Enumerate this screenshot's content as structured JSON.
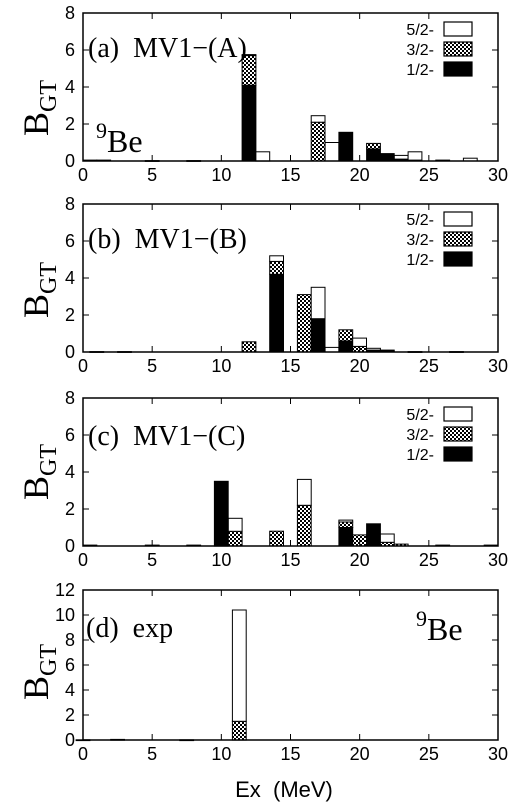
{
  "chart_data": [
    {
      "type": "bar",
      "stacked": true,
      "title": "(a)  MV1−(A)",
      "nucleus_label": {
        "mass": "9",
        "symbol": "Be"
      },
      "ylabel": {
        "main": "B",
        "sub": "GT"
      },
      "xlabel": "",
      "xlim": [
        0,
        30
      ],
      "ylim": [
        0,
        8
      ],
      "xticks": [
        0,
        5,
        10,
        15,
        20,
        25,
        30
      ],
      "yticks": [
        0,
        2,
        4,
        6,
        8
      ],
      "legend": {
        "position": "top-right",
        "entries": [
          "5/2-",
          "3/2-",
          "1/2-"
        ]
      },
      "bar_width": 1,
      "x": [
        0.5,
        1.5,
        5.0,
        8.0,
        12.0,
        13.0,
        17.0,
        18.0,
        19.0,
        21.0,
        22.0,
        23.0,
        24.0,
        26.0,
        28.0
      ],
      "series": [
        {
          "name": "1/2-",
          "style": "solid",
          "values": [
            0.05,
            0.0,
            0.0,
            0.0,
            4.1,
            0.0,
            0.0,
            0.0,
            1.55,
            0.65,
            0.4,
            0.1,
            0.05,
            0.0,
            0.0
          ]
        },
        {
          "name": "3/2-",
          "style": "hatched",
          "values": [
            0.0,
            0.05,
            0.02,
            0.02,
            1.6,
            0.0,
            2.1,
            0.0,
            0.0,
            0.3,
            0.0,
            0.0,
            0.0,
            0.05,
            0.0
          ]
        },
        {
          "name": "5/2-",
          "style": "open",
          "values": [
            0.0,
            0.0,
            0.0,
            0.0,
            0.05,
            0.5,
            0.35,
            1.0,
            0.0,
            0.0,
            0.0,
            0.2,
            0.45,
            0.0,
            0.15
          ]
        }
      ]
    },
    {
      "type": "bar",
      "stacked": true,
      "title": "(b)  MV1−(B)",
      "ylabel": {
        "main": "B",
        "sub": "GT"
      },
      "xlabel": "",
      "xlim": [
        0,
        30
      ],
      "ylim": [
        0,
        8
      ],
      "xticks": [
        0,
        5,
        10,
        15,
        20,
        25,
        30
      ],
      "yticks": [
        0,
        2,
        4,
        6,
        8
      ],
      "legend": {
        "position": "top-right",
        "entries": [
          "5/2-",
          "3/2-",
          "1/2-"
        ]
      },
      "bar_width": 1,
      "x": [
        1.0,
        3.0,
        12.0,
        14.0,
        16.0,
        17.0,
        18.0,
        19.0,
        20.0,
        21.0,
        22.0,
        24.0,
        27.0
      ],
      "series": [
        {
          "name": "1/2-",
          "style": "solid",
          "values": [
            0.0,
            0.0,
            0.0,
            4.2,
            0.0,
            1.8,
            0.0,
            0.6,
            0.0,
            0.1,
            0.05,
            0.0,
            0.0
          ]
        },
        {
          "name": "3/2-",
          "style": "hatched",
          "values": [
            0.02,
            0.02,
            0.55,
            0.7,
            3.1,
            0.0,
            0.0,
            0.6,
            0.3,
            0.0,
            0.0,
            0.02,
            0.02
          ]
        },
        {
          "name": "5/2-",
          "style": "open",
          "values": [
            0.0,
            0.0,
            0.0,
            0.3,
            0.0,
            1.7,
            0.25,
            0.0,
            0.45,
            0.1,
            0.05,
            0.0,
            0.0
          ]
        }
      ]
    },
    {
      "type": "bar",
      "stacked": true,
      "title": "(c)  MV1−(C)",
      "ylabel": {
        "main": "B",
        "sub": "GT"
      },
      "xlabel": "",
      "xlim": [
        0,
        30
      ],
      "ylim": [
        0,
        8
      ],
      "xticks": [
        0,
        5,
        10,
        15,
        20,
        25,
        30
      ],
      "yticks": [
        0,
        2,
        4,
        6,
        8
      ],
      "legend": {
        "position": "top-right",
        "entries": [
          "5/2-",
          "3/2-",
          "1/2-"
        ]
      },
      "bar_width": 1,
      "x": [
        0.5,
        5.0,
        8.0,
        10.0,
        11.0,
        14.0,
        16.0,
        19.0,
        20.0,
        21.0,
        22.0,
        23.0,
        26.0,
        29.5
      ],
      "series": [
        {
          "name": "1/2-",
          "style": "solid",
          "values": [
            0.05,
            0.0,
            0.0,
            3.5,
            0.0,
            0.0,
            0.0,
            1.0,
            0.0,
            1.2,
            0.0,
            0.0,
            0.0,
            0.05
          ]
        },
        {
          "name": "3/2-",
          "style": "hatched",
          "values": [
            0.0,
            0.05,
            0.05,
            0.0,
            0.8,
            0.8,
            2.2,
            0.3,
            0.6,
            0.0,
            0.2,
            0.1,
            0.05,
            0.0
          ]
        },
        {
          "name": "5/2-",
          "style": "open",
          "values": [
            0.0,
            0.0,
            0.0,
            0.0,
            0.7,
            0.0,
            1.4,
            0.1,
            0.0,
            0.0,
            0.45,
            0.0,
            0.0,
            0.0
          ]
        }
      ]
    },
    {
      "type": "bar",
      "stacked": true,
      "title": "(d)  exp",
      "nucleus_label": {
        "mass": "9",
        "symbol": "Be"
      },
      "ylabel": {
        "main": "B",
        "sub": "GT"
      },
      "xlabel": "Ex  (MeV)",
      "xlim": [
        0,
        30
      ],
      "ylim": [
        0,
        12
      ],
      "xticks": [
        0,
        5,
        10,
        15,
        20,
        25,
        30
      ],
      "yticks": [
        0,
        2,
        4,
        6,
        8,
        10,
        12
      ],
      "legend": null,
      "bar_width": 1,
      "x": [
        0.0,
        2.5,
        7.5,
        11.3
      ],
      "series": [
        {
          "name": "3/2-",
          "style": "hatched",
          "values": [
            0.02,
            0.05,
            0.02,
            1.5
          ]
        },
        {
          "name": "5/2-",
          "style": "open",
          "values": [
            0.0,
            0.0,
            0.0,
            8.9
          ]
        }
      ]
    }
  ]
}
